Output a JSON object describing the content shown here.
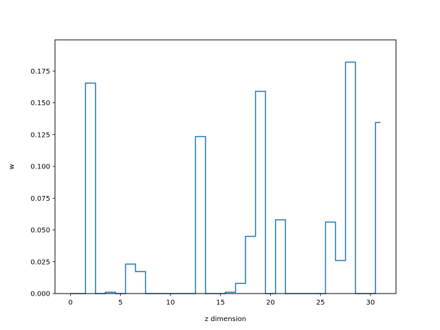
{
  "chart_data": {
    "type": "line",
    "drawstyle": "steps-mid",
    "xlabel": "z dimension",
    "ylabel": "w",
    "xlim": [
      -1.55,
      32.55
    ],
    "ylim": [
      0,
      0.1995
    ],
    "xticks": [
      0,
      5,
      10,
      15,
      20,
      25,
      30
    ],
    "yticks": [
      0.0,
      0.025,
      0.05,
      0.075,
      0.1,
      0.125,
      0.15,
      0.175
    ],
    "ytick_labels": [
      "0.000",
      "0.025",
      "0.050",
      "0.075",
      "0.100",
      "0.125",
      "0.150",
      "0.175"
    ],
    "grid": false,
    "legend": "none",
    "color": "#1f77b4",
    "x": [
      0,
      1,
      2,
      3,
      4,
      5,
      6,
      7,
      8,
      9,
      10,
      11,
      12,
      13,
      14,
      15,
      16,
      17,
      18,
      19,
      20,
      21,
      22,
      23,
      24,
      25,
      26,
      27,
      28,
      29,
      30,
      31
    ],
    "values": [
      0.0,
      0.0,
      0.1655,
      0.0,
      0.001,
      0.0,
      0.0232,
      0.0173,
      0.0,
      0.0,
      0.0,
      0.0,
      0.0,
      0.1235,
      0.0,
      0.0,
      0.001,
      0.008,
      0.045,
      0.159,
      0.0,
      0.058,
      0.0,
      0.0,
      0.0,
      0.0,
      0.0562,
      0.026,
      0.182,
      0.0,
      0.0,
      0.1345
    ]
  }
}
